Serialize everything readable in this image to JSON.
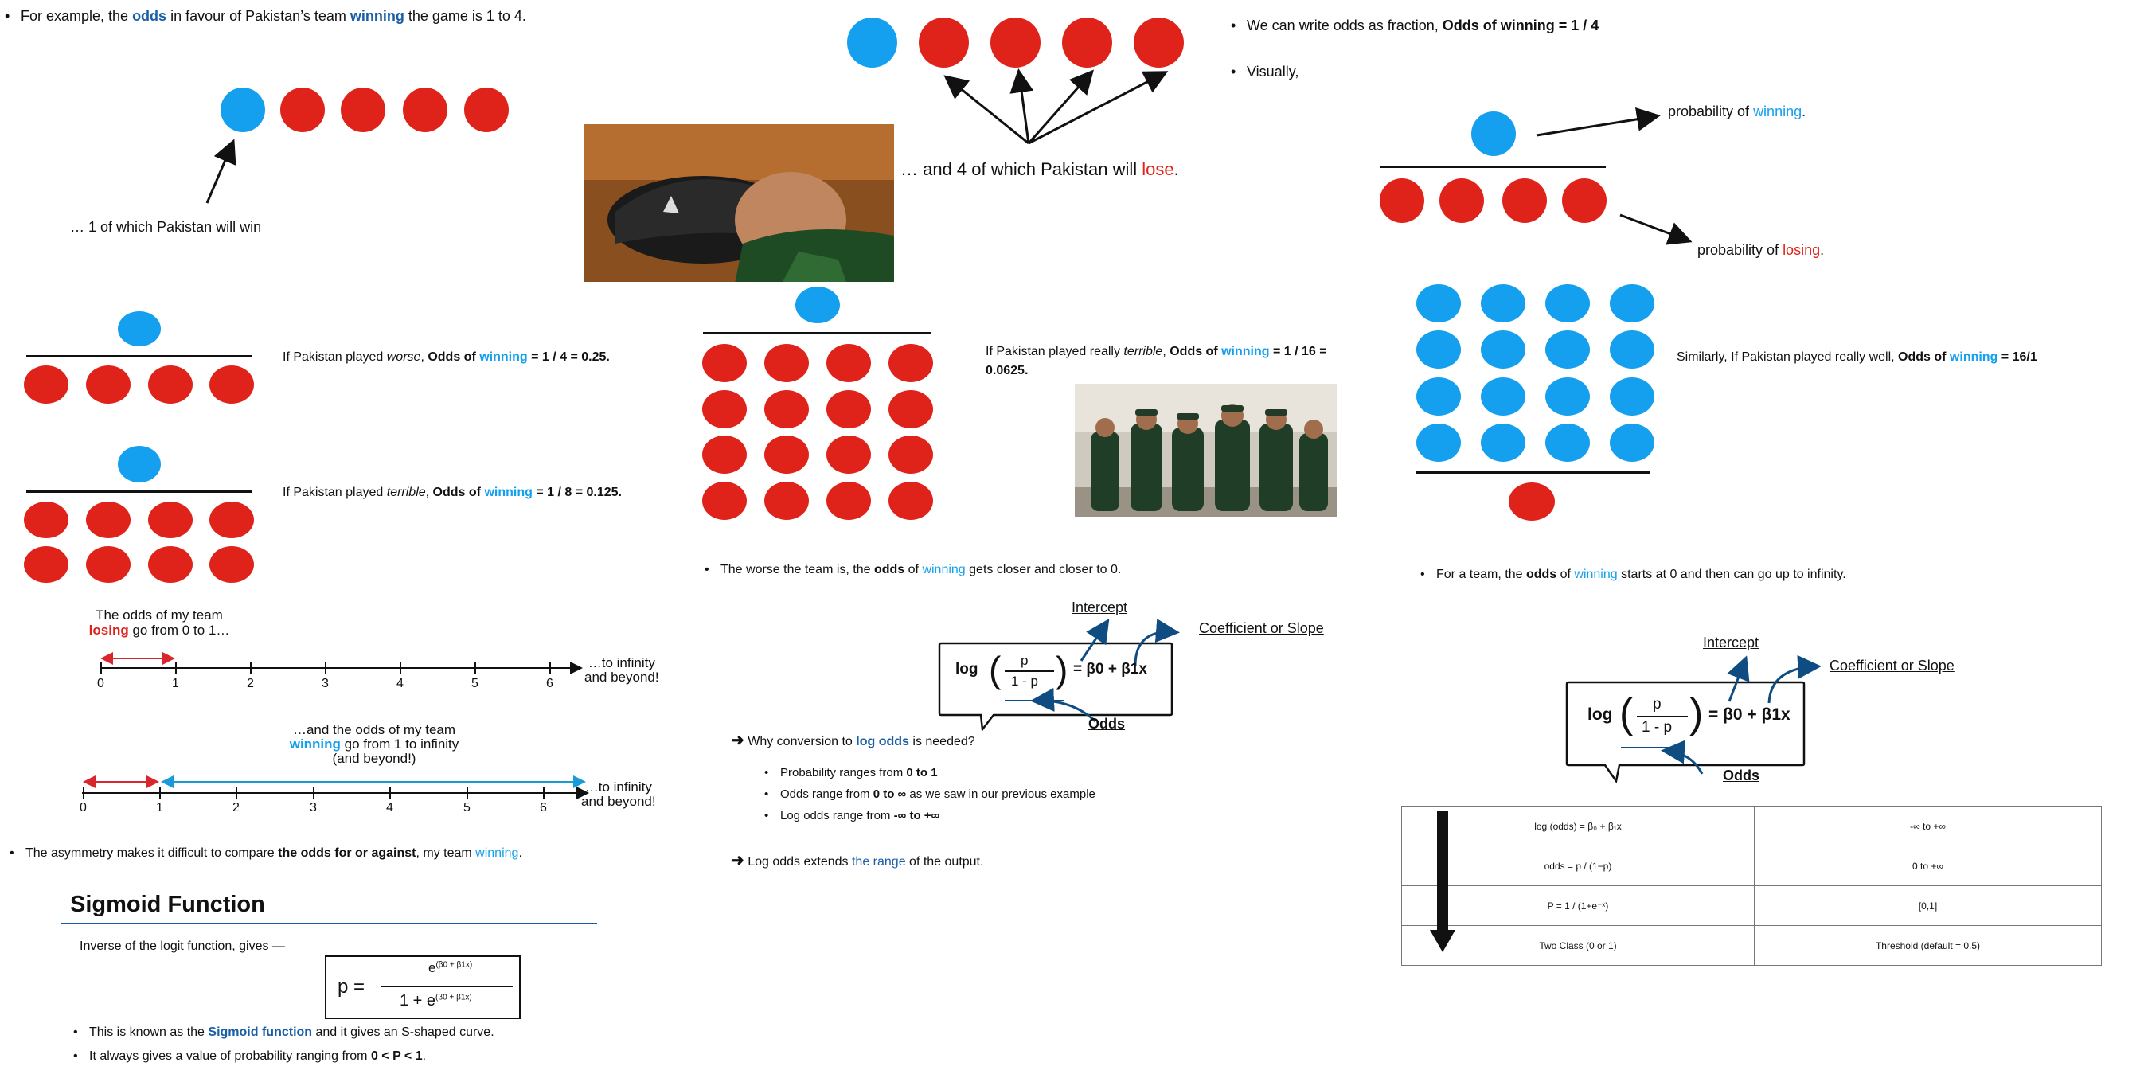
{
  "colors": {
    "red": "#e0231a",
    "blue": "#14a0ee",
    "navy": "#1a5ea6",
    "arrow": "#0f4c81"
  },
  "top": {
    "intro": {
      "a": "For example, the ",
      "odds": "odds",
      "b": " in favour of Pakistan’s team ",
      "winning": "winning",
      "c": " the game is 1 to 4."
    },
    "win_caption": "… 1 of which Pakistan will win",
    "lose_caption_a": "… and 4 of which Pakistan will ",
    "lose_caption_b": "lose",
    "lose_caption_c": ".",
    "fraction": {
      "a": "We can write odds as fraction, ",
      "b": "Odds of winning = 1 / 4"
    },
    "visually": "Visually,",
    "prob_win": {
      "a": "probability of ",
      "b": "winning",
      "c": "."
    },
    "prob_lose": {
      "a": "probability of ",
      "b": "losing",
      "c": "."
    }
  },
  "cases": {
    "worse": {
      "a": "If Pakistan played ",
      "b": "worse",
      "c": ", ",
      "d": "Odds of ",
      "e": "winning",
      "f": " = 1 / 4 = 0.25."
    },
    "terrible": {
      "a": "If Pakistan played ",
      "b": "terrible",
      "c": ", ",
      "d": "Odds of ",
      "e": "winning",
      "f": " = 1 / 8 = 0.125."
    },
    "really_terrible": {
      "a": "If Pakistan played really ",
      "b": "terrible",
      "c": ", ",
      "d": "Odds of ",
      "e": "winning",
      "f": " = 1 / 16 =",
      "g": "0.0625."
    },
    "really_well": {
      "a": "Similarly, If Pakistan played really well, ",
      "d": "Odds of ",
      "e": "winning",
      "f": " = 16/1"
    }
  },
  "worse_note": {
    "a": "The worse the team is, the ",
    "b": "odds",
    "c": " of ",
    "d": "winning",
    "e": " gets closer and closer to 0."
  },
  "team_note": {
    "a": "For a team, the ",
    "b": "odds",
    "c": " of ",
    "d": "winning",
    "e": " starts at 0 and then can go up to infinity."
  },
  "number_lines": {
    "losing_a": "The odds of my team",
    "losing_b": "losing",
    "losing_c": " go from 0 to 1…",
    "winning_a": "…and the odds of my team",
    "winning_b": "winning",
    "winning_c": " go from 1 to infinity",
    "winning_d": "(and beyond!)",
    "infinity_a": "…to infinity",
    "infinity_b": "and beyond!",
    "ticks": [
      "0",
      "1",
      "2",
      "3",
      "4",
      "5",
      "6"
    ]
  },
  "asymmetry": {
    "a": "The asymmetry makes it difficult to compare ",
    "b": "the odds for or against",
    "c": ", my team ",
    "d": "winning",
    "e": "."
  },
  "sigmoid": {
    "title": "Sigmoid Function",
    "inverse": "Inverse of the logit function, gives —",
    "p": "p =",
    "numerator": "e",
    "exp": "(β0 + β1x)",
    "denominator": "1  +  e",
    "bullet1_a": "This is known as the ",
    "bullet1_b": "Sigmoid function",
    "bullet1_c": " and it gives an S-shaped curve.",
    "bullet2_a": "It always gives a value of probability ranging from ",
    "bullet2_b": "0 < P < 1",
    "bullet2_c": "."
  },
  "logit": {
    "intercept": "Intercept",
    "coef": "Coefficient or Slope",
    "log": "log",
    "p": "p",
    "one_minus_p": "1 - p",
    "rhs": "= β0 + β1x",
    "odds": "Odds"
  },
  "conversion": {
    "q_a": "Why conversion to ",
    "q_b": "log odds",
    "q_c": " is needed?",
    "b1_a": "Probability ranges from ",
    "b1_b": "0 to 1",
    "b2_a": "Odds range from ",
    "b2_b": "0 to ∞",
    "b2_c": " as we saw in our previous example",
    "b3_a": "Log odds range from ",
    "b3_b": "-∞ to +∞",
    "ext_a": "Log odds extends ",
    "ext_b": "the range",
    "ext_c": " of the output."
  },
  "table": {
    "rows": [
      [
        "log (odds) = β₀ + β₁x",
        "-∞ to +∞"
      ],
      [
        "odds = p / (1−p)",
        "0 to +∞"
      ],
      [
        "P = 1 / (1+e⁻ˣ)",
        "[0,1]"
      ],
      [
        "Two Class (0 or 1)",
        "Threshold (default = 0.5)"
      ]
    ]
  }
}
